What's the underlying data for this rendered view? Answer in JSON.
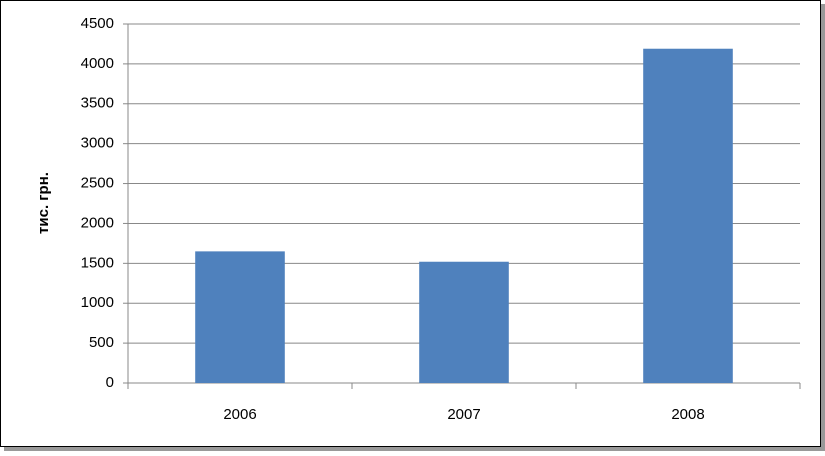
{
  "chart_data": {
    "type": "bar",
    "y_label": "тис. грн.",
    "categories": [
      "2006",
      "2007",
      "2008"
    ],
    "values": [
      1650,
      1520,
      4190
    ],
    "color": "#4f81bd",
    "ylim": [
      0,
      4500
    ],
    "yticks": [
      0,
      500,
      1000,
      1500,
      2000,
      2500,
      3000,
      3500,
      4000,
      4500
    ],
    "grid": true
  }
}
